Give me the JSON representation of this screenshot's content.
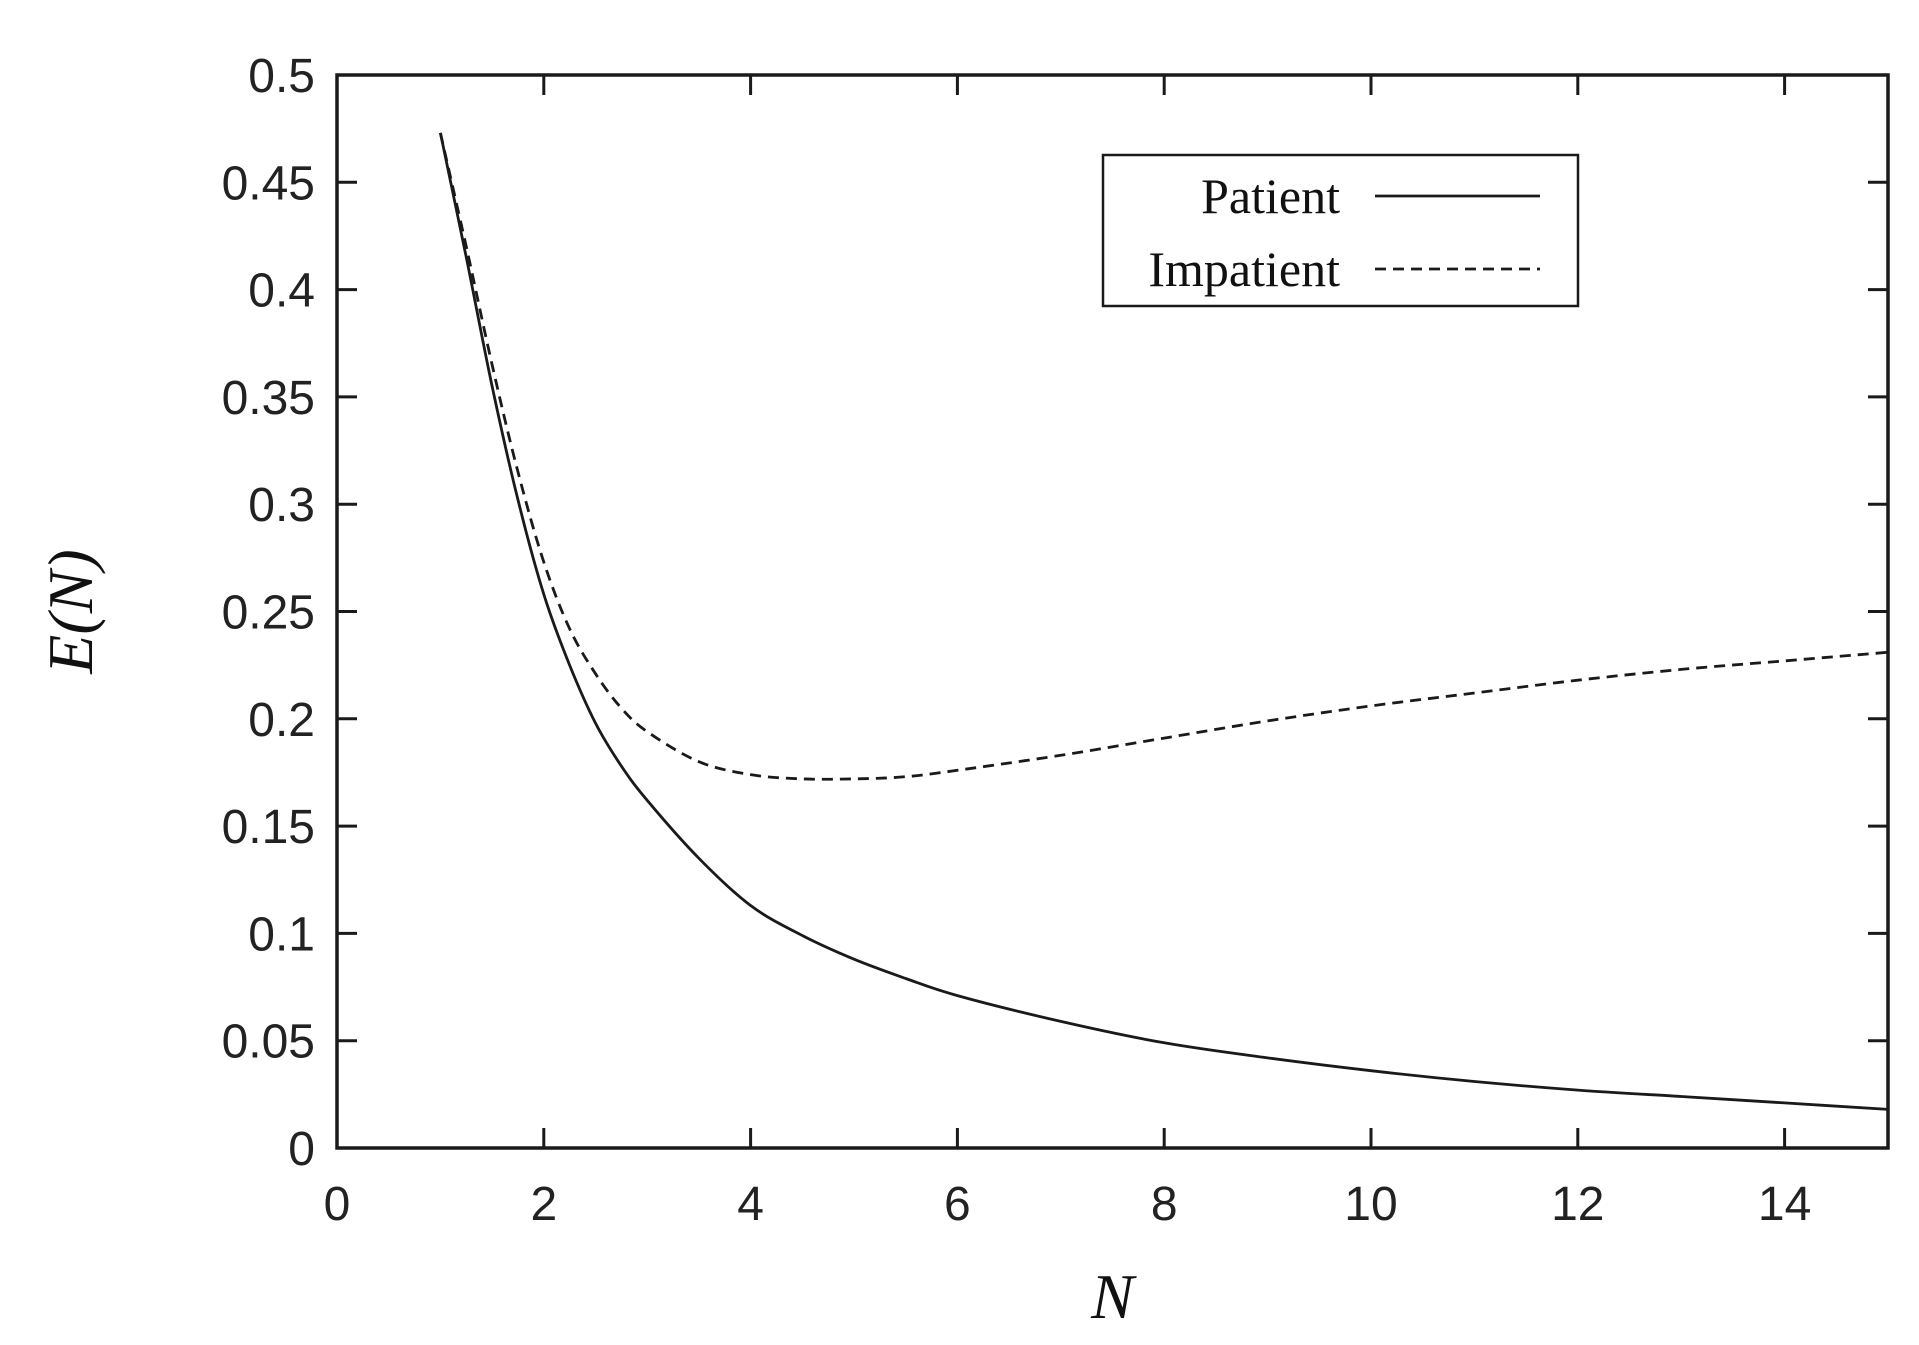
{
  "chart_data": {
    "type": "line",
    "title": "",
    "xlabel": "N",
    "ylabel": "E(N)",
    "xlim": [
      0,
      15
    ],
    "ylim": [
      0,
      0.5
    ],
    "xticks": [
      0,
      2,
      4,
      6,
      8,
      10,
      12,
      14
    ],
    "yticks": [
      0,
      0.05,
      0.1,
      0.15,
      0.2,
      0.25,
      0.3,
      0.35,
      0.4,
      0.45,
      0.5
    ],
    "xtick_labels": [
      "0",
      "2",
      "4",
      "6",
      "8",
      "10",
      "12",
      "14"
    ],
    "ytick_labels": [
      "0",
      "0.05",
      "0.1",
      "0.15",
      "0.2",
      "0.25",
      "0.3",
      "0.35",
      "0.4",
      "0.45",
      "0.5"
    ],
    "grid": false,
    "legend_position": "top-right",
    "series": [
      {
        "name": "Patient",
        "style": "solid",
        "color": "#1a1a1a",
        "x": [
          1.0,
          1.25,
          1.5,
          1.75,
          2.0,
          2.25,
          2.5,
          2.75,
          3.0,
          3.5,
          4.0,
          4.5,
          5.0,
          5.5,
          6.0,
          7.0,
          8.0,
          9.0,
          10.0,
          11.0,
          12.0,
          13.0,
          14.0,
          15.0
        ],
        "y": [
          0.473,
          0.415,
          0.355,
          0.302,
          0.258,
          0.225,
          0.198,
          0.178,
          0.162,
          0.135,
          0.113,
          0.099,
          0.088,
          0.079,
          0.071,
          0.059,
          0.049,
          0.042,
          0.036,
          0.031,
          0.027,
          0.024,
          0.021,
          0.018
        ]
      },
      {
        "name": "Impatient",
        "style": "dashed",
        "color": "#1a1a1a",
        "x": [
          1.0,
          1.25,
          1.5,
          1.75,
          2.0,
          2.25,
          2.5,
          2.75,
          3.0,
          3.5,
          4.0,
          4.5,
          5.0,
          5.5,
          6.0,
          7.0,
          8.0,
          9.0,
          10.0,
          11.0,
          12.0,
          13.0,
          14.0,
          15.0
        ],
        "y": [
          0.473,
          0.42,
          0.365,
          0.315,
          0.273,
          0.242,
          0.221,
          0.205,
          0.194,
          0.18,
          0.174,
          0.172,
          0.172,
          0.173,
          0.176,
          0.183,
          0.191,
          0.199,
          0.206,
          0.212,
          0.218,
          0.223,
          0.227,
          0.231
        ]
      }
    ]
  }
}
